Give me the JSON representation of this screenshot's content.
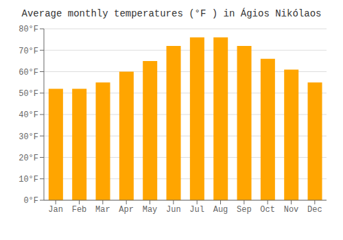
{
  "chart_data": {
    "type": "bar",
    "title": "Average monthly temperatures (°F ) in Ágios Nikólaos",
    "categories": [
      "Jan",
      "Feb",
      "Mar",
      "Apr",
      "May",
      "Jun",
      "Jul",
      "Aug",
      "Sep",
      "Oct",
      "Nov",
      "Dec"
    ],
    "values": [
      52,
      52,
      55,
      60,
      65,
      72,
      76,
      76,
      72,
      66,
      61,
      55
    ],
    "color": "#FFA500",
    "ylim": [
      0,
      80
    ],
    "yticks": [
      {
        "value": 0,
        "label": "0°F"
      },
      {
        "value": 10,
        "label": "10°F"
      },
      {
        "value": 20,
        "label": "20°F"
      },
      {
        "value": 30,
        "label": "30°F"
      },
      {
        "value": 40,
        "label": "40°F"
      },
      {
        "value": 50,
        "label": "50°F"
      },
      {
        "value": 60,
        "label": "60°F"
      },
      {
        "value": 70,
        "label": "70°F"
      },
      {
        "value": 80,
        "label": "80°F"
      }
    ],
    "grid": true
  }
}
